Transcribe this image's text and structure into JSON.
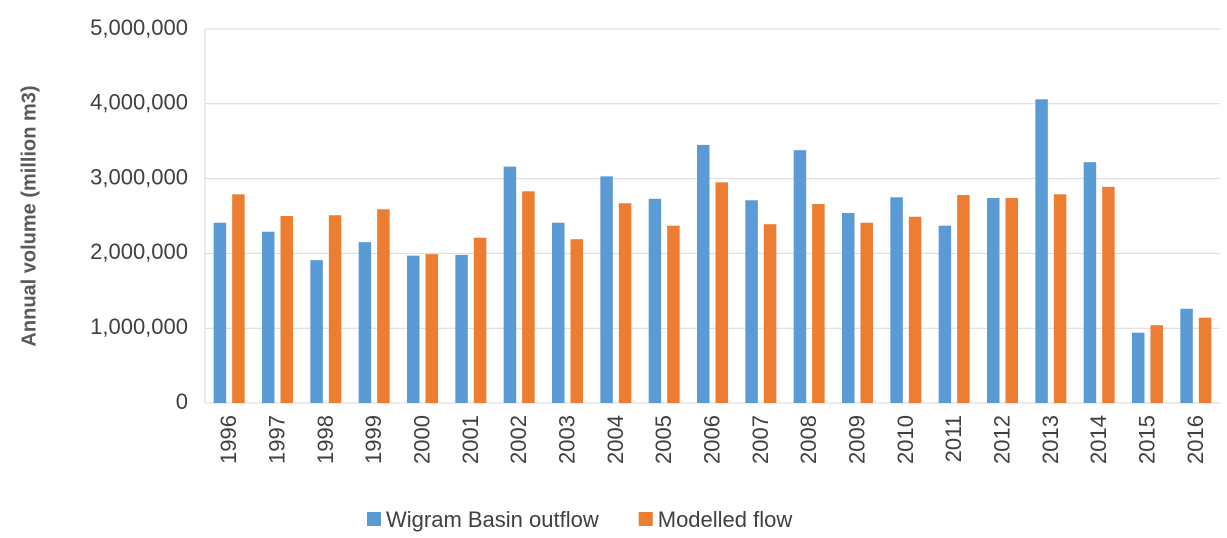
{
  "chart_data": {
    "type": "bar",
    "y_label": "Annual volume (million m3)",
    "categories": [
      "1996",
      "1997",
      "1998",
      "1999",
      "2000",
      "2001",
      "2002",
      "2003",
      "2004",
      "2005",
      "2006",
      "2007",
      "2008",
      "2009",
      "2010",
      "2011",
      "2012",
      "2013",
      "2014",
      "2015",
      "2016"
    ],
    "series": [
      {
        "name": "Wigram Basin outflow",
        "color": "#5b9bd5",
        "values": [
          2410000,
          2290000,
          1910000,
          2150000,
          1970000,
          1980000,
          3160000,
          2410000,
          3030000,
          2730000,
          3450000,
          2710000,
          3380000,
          2540000,
          2750000,
          2370000,
          2740000,
          4060000,
          3220000,
          940000,
          1260000
        ]
      },
      {
        "name": "Modelled flow",
        "color": "#ed7d31",
        "values": [
          2790000,
          2500000,
          2510000,
          2590000,
          1990000,
          2210000,
          2830000,
          2190000,
          2670000,
          2370000,
          2950000,
          2390000,
          2660000,
          2410000,
          2490000,
          2780000,
          2740000,
          2790000,
          2890000,
          1040000,
          1140000
        ]
      }
    ],
    "ylim": [
      0,
      5000000
    ],
    "yticks": [
      0,
      {
        "value": 1000000,
        "label": "1,000,000"
      },
      {
        "value": 2000000,
        "label": "2,000,000"
      },
      {
        "value": 3000000,
        "label": "3,000,000"
      },
      {
        "value": 4000000,
        "label": "4,000,000"
      },
      {
        "value": 5000000,
        "label": "5,000,000"
      }
    ],
    "grid": true,
    "legend": "bottom"
  }
}
